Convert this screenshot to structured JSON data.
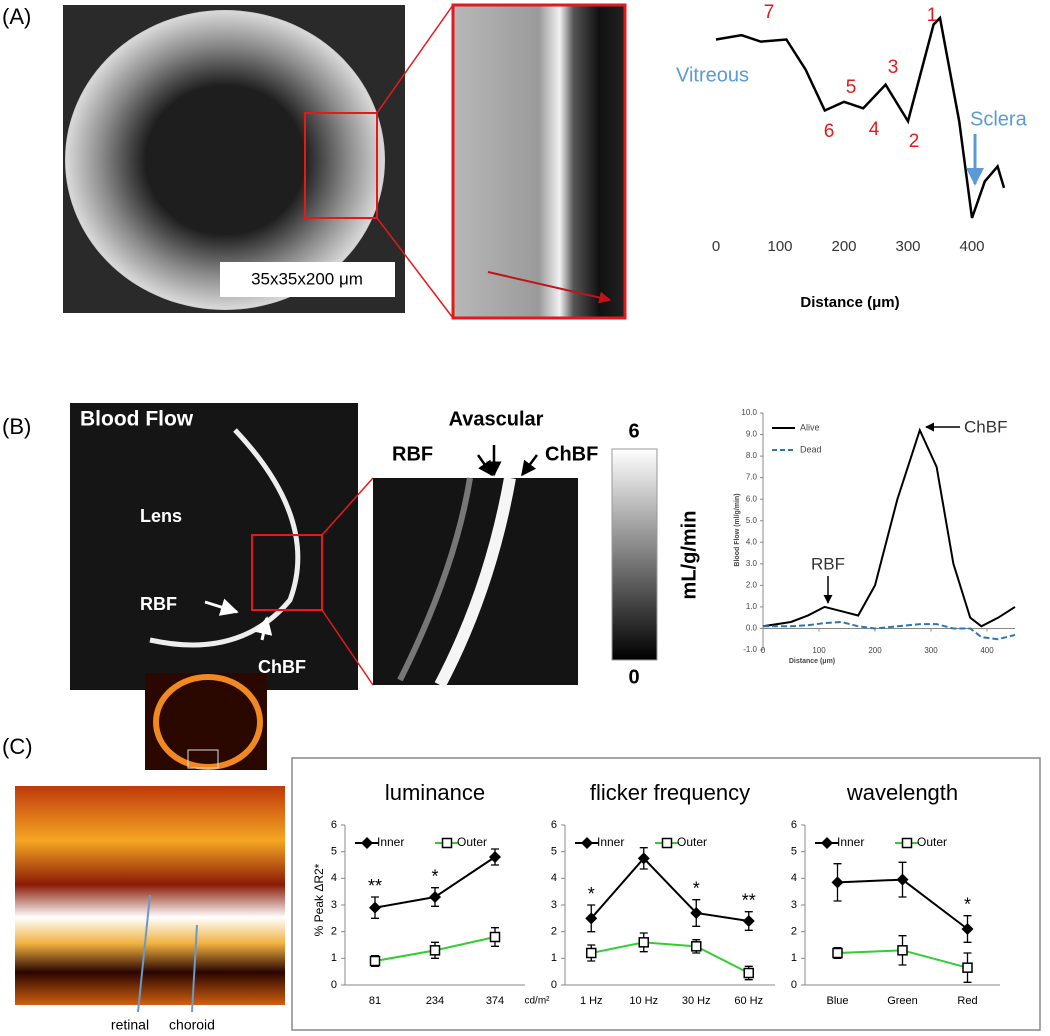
{
  "figure": {
    "panel_labels": [
      "(A)",
      "(B)",
      "(C)"
    ],
    "scale_label": "35x35x200 μm",
    "blood_flow_title": "Blood Flow",
    "image_labels": [
      "Lens",
      "RBF",
      "ChBF"
    ],
    "zoom_labels": [
      "Avascular",
      "RBF",
      "ChBF"
    ],
    "colorbar": {
      "ticks": [
        6,
        0
      ],
      "label": "mL/g/min"
    },
    "strip_labels": [
      "retinal",
      "choroid"
    ]
  },
  "chart_data": [
    {
      "type": "profile",
      "x": [
        0,
        40,
        70,
        110,
        140,
        170,
        200,
        230,
        265,
        300,
        340,
        350,
        380,
        400,
        420,
        440,
        450
      ],
      "values": [
        90,
        92,
        89,
        90,
        76,
        57,
        61,
        58,
        69,
        52,
        97,
        100,
        52,
        7,
        24,
        31,
        21
      ],
      "color": "#000000",
      "xlabel": "Distance (μm)",
      "xlim": [
        0,
        450
      ],
      "xticks": [
        0,
        100,
        200,
        300,
        400
      ],
      "peak_labels": [
        "1",
        "2",
        "3",
        "4",
        "5",
        "6",
        "7"
      ],
      "peak_color": "#e31a1c",
      "region_labels": [
        "Vitreous",
        "Sclera"
      ],
      "region_color": "#5b9bd5"
    },
    {
      "type": "line",
      "x": [
        0,
        50,
        80,
        110,
        140,
        170,
        200,
        240,
        280,
        310,
        340,
        370,
        390,
        420,
        450
      ],
      "series": [
        {
          "name": "Alive",
          "color": "#000000",
          "dashed": false,
          "values": [
            0.1,
            0.3,
            0.6,
            1.0,
            0.8,
            0.6,
            2.0,
            6.0,
            9.2,
            7.5,
            3.0,
            0.5,
            0.1,
            0.5,
            1.0
          ]
        },
        {
          "name": "Dead",
          "color": "#2e75b6",
          "dashed": true,
          "values": [
            0.1,
            0.1,
            0.15,
            0.25,
            0.3,
            0.1,
            0.0,
            0.1,
            0.2,
            0.2,
            0.0,
            0.0,
            -0.4,
            -0.5,
            -0.3
          ]
        }
      ],
      "xlabel": "Distance (μm)",
      "ylabel": "Blood Flow (ml/g/min)",
      "xlim": [
        0,
        450
      ],
      "xticks": [
        0,
        100,
        200,
        300,
        400
      ],
      "ylim": [
        -1,
        10
      ],
      "yticks": [
        {
          "value": -1,
          "label": "-1.0"
        },
        {
          "value": 0,
          "label": "0.0"
        },
        {
          "value": 1,
          "label": "1.0"
        },
        {
          "value": 2,
          "label": "2.0"
        },
        {
          "value": 3,
          "label": "3.0"
        },
        {
          "value": 4,
          "label": "4.0"
        },
        {
          "value": 5,
          "label": "5.0"
        },
        {
          "value": 6,
          "label": "6.0"
        },
        {
          "value": 7,
          "label": "7.0"
        },
        {
          "value": 8,
          "label": "8.0"
        },
        {
          "value": 9,
          "label": "9.0"
        },
        {
          "value": 10,
          "label": "10.0"
        }
      ],
      "annotations": [
        "ChBF",
        "RBF"
      ]
    },
    {
      "type": "errorbar",
      "title": "luminance",
      "ylabel": "% Peak ΔR2*",
      "x_unit": "cd/m²",
      "categories": [
        "81",
        "234",
        "374"
      ],
      "series": [
        {
          "name": "Inner",
          "color": "#000000",
          "marker": "diamond",
          "values": [
            2.9,
            3.3,
            4.8
          ],
          "errors": [
            0.4,
            0.35,
            0.3
          ]
        },
        {
          "name": "Outer",
          "color": "#33cc33",
          "marker": "square",
          "values": [
            0.9,
            1.3,
            1.8
          ],
          "errors": [
            0.2,
            0.3,
            0.35
          ]
        }
      ],
      "significance": [
        "**",
        "*",
        null
      ],
      "ylim": [
        0,
        6
      ],
      "yticks": [
        0,
        1,
        2,
        3,
        4,
        5,
        6
      ]
    },
    {
      "type": "errorbar",
      "title": "flicker frequency",
      "categories": [
        "1 Hz",
        "10 Hz",
        "30 Hz",
        "60 Hz"
      ],
      "series": [
        {
          "name": "Inner",
          "color": "#000000",
          "marker": "diamond",
          "values": [
            2.5,
            4.75,
            2.7,
            2.4
          ],
          "errors": [
            0.5,
            0.4,
            0.5,
            0.35
          ]
        },
        {
          "name": "Outer",
          "color": "#33cc33",
          "marker": "square",
          "values": [
            1.2,
            1.6,
            1.45,
            0.45
          ],
          "errors": [
            0.3,
            0.35,
            0.25,
            0.25
          ]
        }
      ],
      "significance": [
        "*",
        null,
        "*",
        "**"
      ],
      "ylim": [
        0,
        6
      ],
      "yticks": [
        0,
        1,
        2,
        3,
        4,
        5,
        6
      ]
    },
    {
      "type": "errorbar",
      "title": "wavelength",
      "categories": [
        "Blue",
        "Green",
        "Red"
      ],
      "series": [
        {
          "name": "Inner",
          "color": "#000000",
          "marker": "diamond",
          "values": [
            3.85,
            3.95,
            2.1
          ],
          "errors": [
            0.7,
            0.65,
            0.5
          ]
        },
        {
          "name": "Outer",
          "color": "#33cc33",
          "marker": "square",
          "values": [
            1.2,
            1.3,
            0.65
          ],
          "errors": [
            0.2,
            0.55,
            0.55
          ]
        }
      ],
      "significance": [
        null,
        null,
        "*"
      ],
      "ylim": [
        0,
        6
      ],
      "yticks": [
        0,
        1,
        2,
        3,
        4,
        5,
        6
      ]
    }
  ]
}
